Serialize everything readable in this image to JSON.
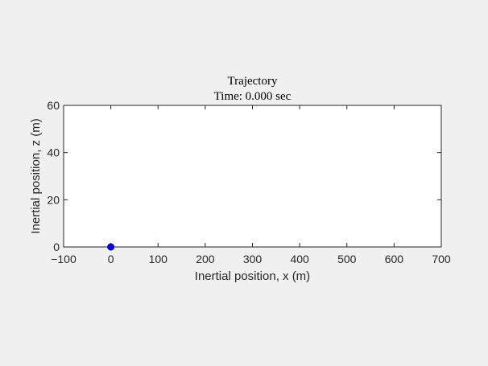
{
  "window": {
    "background_color": "#f0f0f0"
  },
  "chart_data": {
    "type": "scatter",
    "title": "Trajectory",
    "subtitle": "Time: 0.000 sec",
    "xlabel": "Inertial position, x (m)",
    "ylabel": "Inertial position, z (m)",
    "xlim": [
      -100,
      700
    ],
    "ylim": [
      0,
      60
    ],
    "xticks": [
      -100,
      0,
      100,
      200,
      300,
      400,
      500,
      600,
      700
    ],
    "xtick_labels": [
      "−100",
      "0",
      "100",
      "200",
      "300",
      "400",
      "500",
      "600",
      "700"
    ],
    "yticks": [
      0,
      20,
      40,
      60
    ],
    "ytick_labels": [
      "0",
      "20",
      "40",
      "60"
    ],
    "grid": false,
    "series": [
      {
        "x": [
          0
        ],
        "y": [
          0
        ],
        "marker": "circle",
        "color": "#0000ff"
      }
    ],
    "colors": {
      "axes_background": "#ffffff",
      "axes_line": "#262626",
      "marker_fill": "#0000ff",
      "marker_edge": "#000080"
    }
  }
}
